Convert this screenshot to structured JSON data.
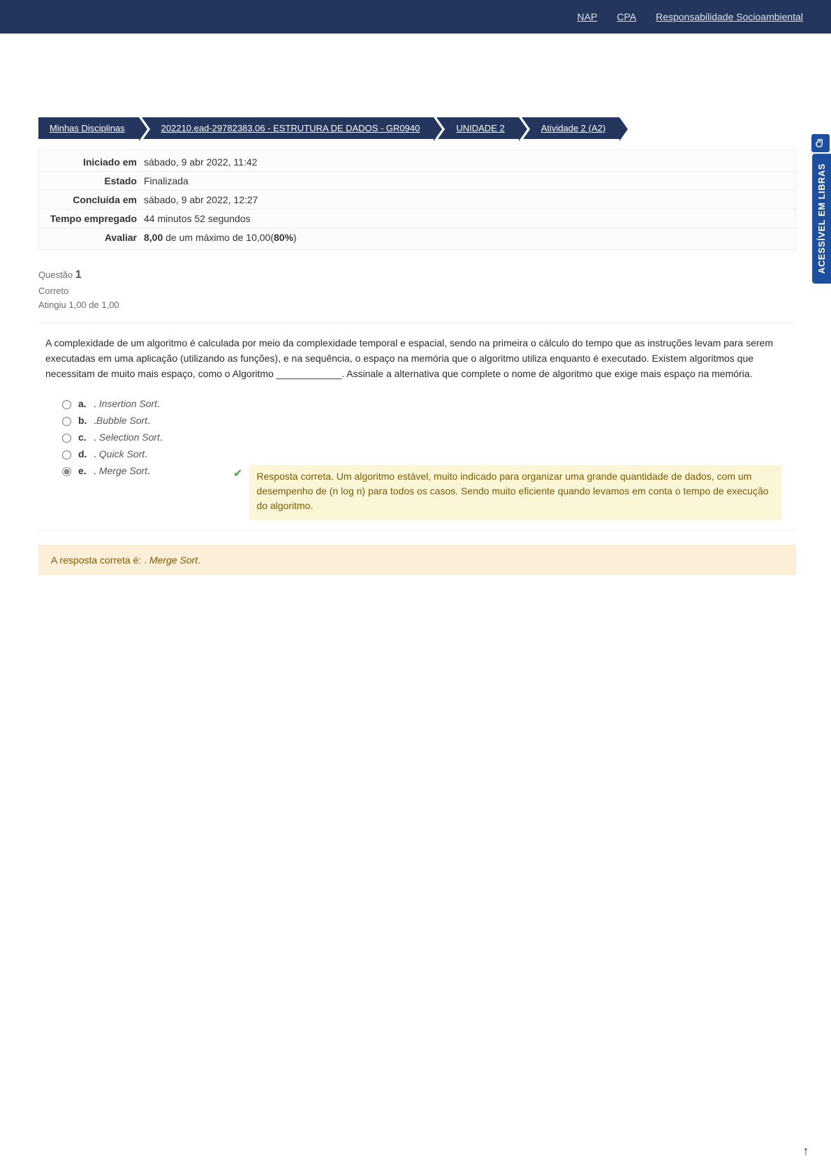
{
  "topbar": {
    "links": [
      {
        "label": "NAP"
      },
      {
        "label": "CPA"
      },
      {
        "label": "Responsabilidade Socioambiental"
      }
    ]
  },
  "breadcrumb": [
    {
      "label": "Minhas Disciplinas"
    },
    {
      "label": "202210.ead-29782383.06 - ESTRUTURA DE DADOS - GR0940"
    },
    {
      "label": "UNIDADE 2"
    },
    {
      "label": "Atividade 2 (A2)"
    }
  ],
  "info": {
    "rows": [
      {
        "label": "Iniciado em",
        "value": "sábado, 9 abr 2022, 11:42"
      },
      {
        "label": "Estado",
        "value": "Finalizada"
      },
      {
        "label": "Concluída em",
        "value": "sábado, 9 abr 2022, 12:27"
      },
      {
        "label": "Tempo empregado",
        "value": "44 minutos 52 segundos"
      }
    ],
    "grade_label": "Avaliar",
    "grade_score": "8,00",
    "grade_mid": " de um máximo de 10,00(",
    "grade_pct": "80%",
    "grade_end": ")"
  },
  "question": {
    "meta_line1_prefix": "Questão ",
    "meta_number": "1",
    "meta_line2": "Correto",
    "meta_line3": "Atingiu 1,00 de 1,00",
    "text": "A complexidade de um algoritmo é calculada por meio da complexidade temporal e espacial, sendo na primeira o cálculo do tempo que as instruções levam para serem executadas em uma aplicação (utilizando as funções), e na sequência, o espaço na memória que o algoritmo utiliza enquanto é executado. Existem algoritmos que necessitam de muito mais espaço, como o Algoritmo ____________. Assinale a alternativa que complete o nome de algoritmo que exige mais espaço na memória.",
    "options": [
      {
        "letter": "a.",
        "prefix": ". ",
        "italic": "Insertion Sort",
        "suffix": ".",
        "selected": false
      },
      {
        "letter": "b.",
        "prefix": ".",
        "italic": "Bubble Sort",
        "suffix": ".",
        "selected": false
      },
      {
        "letter": "c.",
        "prefix": ". ",
        "italic": "Selection Sort",
        "suffix": ".",
        "selected": false
      },
      {
        "letter": "d.",
        "prefix": ". ",
        "italic": "Quick Sort",
        "suffix": ".",
        "selected": false
      },
      {
        "letter": "e.",
        "prefix": ". ",
        "italic": "Merge Sort",
        "suffix": ".",
        "selected": true
      }
    ],
    "feedback": "Resposta correta. Um algoritmo estável, muito indicado para organizar uma grande quantidade de dados, com um desempenho de (n log n) para todos os casos. Sendo muito eficiente quando levamos em conta o tempo de execução do algoritmo.",
    "correct_prefix": "A resposta correta é: . ",
    "correct_italic": "Merge Sort",
    "correct_suffix": "."
  },
  "libras": {
    "label": "ACESSÍVEL EM LIBRAS"
  },
  "colors": {
    "navy": "#24365e",
    "blue": "#1c4fa0",
    "feedback_bg": "#fcf6d8",
    "correct_bg": "#fcefda",
    "text_muted": "#6b6b6b"
  }
}
